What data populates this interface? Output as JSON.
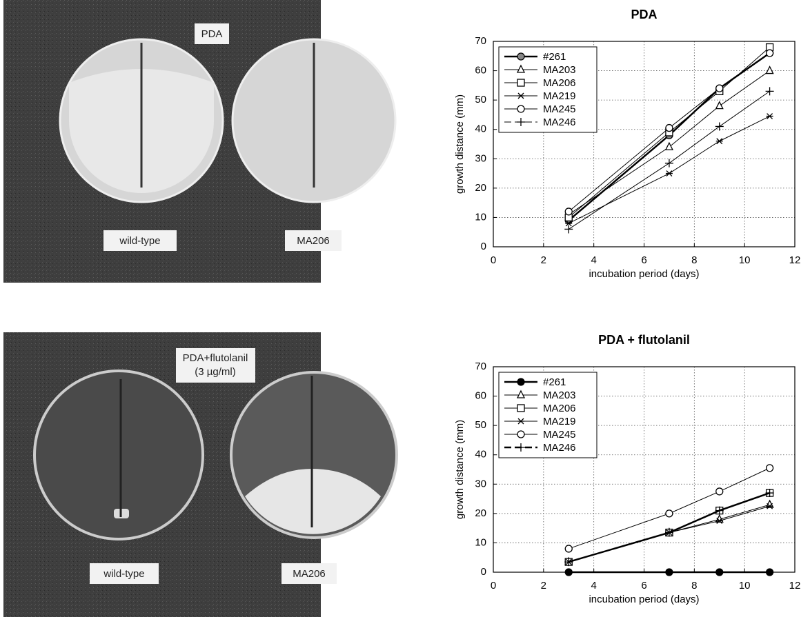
{
  "photos": [
    {
      "title": [
        "PDA"
      ],
      "labels": [
        "wild-type",
        "MA206"
      ]
    },
    {
      "title": [
        "PDA+flutolanil",
        "(3 µg/ml)"
      ],
      "labels": [
        "wild-type",
        "MA206"
      ]
    }
  ],
  "chart_data": [
    {
      "type": "line",
      "title": "PDA",
      "x_label": "incubation period (days)",
      "y_label": "growth distance (mm)",
      "x": [
        3,
        7,
        9,
        11
      ],
      "xlim": [
        0,
        12
      ],
      "xticks": [
        0,
        2,
        4,
        6,
        8,
        10,
        12
      ],
      "ylim": [
        0,
        70
      ],
      "yticks": [
        0,
        10,
        20,
        30,
        40,
        50,
        60,
        70
      ],
      "grid": true,
      "legend": "upper left",
      "series": [
        {
          "name": "#261",
          "color": "#000000",
          "marker": "circle-half",
          "line_width": 2.5,
          "values": [
            9,
            38,
            54,
            66
          ]
        },
        {
          "name": "MA203",
          "color": "#000000",
          "marker": "triangle",
          "line_width": 1,
          "values": [
            11,
            34,
            48,
            60
          ]
        },
        {
          "name": "MA206",
          "color": "#000000",
          "marker": "square",
          "line_width": 1,
          "values": [
            10,
            39,
            53,
            68
          ]
        },
        {
          "name": "MA219",
          "color": "#000000",
          "marker": "star",
          "line_width": 1,
          "values": [
            8,
            25,
            36,
            44.5
          ]
        },
        {
          "name": "MA245",
          "color": "#000000",
          "marker": "circle",
          "line_width": 1,
          "values": [
            12,
            40.5,
            54,
            66
          ]
        },
        {
          "name": "MA246",
          "color": "#000000",
          "marker": "plus",
          "line_width": 1,
          "dash": true,
          "values": [
            6,
            28.5,
            41,
            53
          ]
        }
      ]
    },
    {
      "type": "line",
      "title": "PDA + flutolanil",
      "x_label": "incubation period (days)",
      "y_label": "growth distance (mm)",
      "x": [
        3,
        7,
        9,
        11
      ],
      "xlim": [
        0,
        12
      ],
      "xticks": [
        0,
        2,
        4,
        6,
        8,
        10,
        12
      ],
      "ylim": [
        0,
        70
      ],
      "yticks": [
        0,
        10,
        20,
        30,
        40,
        50,
        60,
        70
      ],
      "grid": true,
      "legend": "upper left",
      "series": [
        {
          "name": "#261",
          "color": "#000000",
          "marker": "circle-filled",
          "line_width": 2.5,
          "values": [
            0,
            0,
            0,
            0
          ]
        },
        {
          "name": "MA203",
          "color": "#000000",
          "marker": "triangle",
          "line_width": 1,
          "values": [
            3.5,
            13.5,
            18,
            23
          ]
        },
        {
          "name": "MA206",
          "color": "#000000",
          "marker": "square",
          "line_width": 1,
          "values": [
            3.5,
            13.5,
            21,
            27
          ]
        },
        {
          "name": "MA219",
          "color": "#000000",
          "marker": "star",
          "line_width": 1,
          "values": [
            3.5,
            13.5,
            17.5,
            22.5
          ]
        },
        {
          "name": "MA245",
          "color": "#000000",
          "marker": "circle",
          "line_width": 1,
          "values": [
            8,
            20,
            27.5,
            35.5
          ]
        },
        {
          "name": "MA246",
          "color": "#000000",
          "marker": "plus",
          "line_width": 2.5,
          "dash": true,
          "values": [
            3.5,
            13.5,
            21,
            27
          ]
        }
      ]
    }
  ]
}
